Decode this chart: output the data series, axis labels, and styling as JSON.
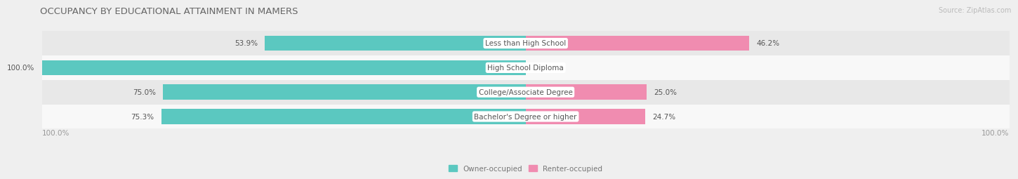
{
  "title": "OCCUPANCY BY EDUCATIONAL ATTAINMENT IN MAMERS",
  "source": "Source: ZipAtlas.com",
  "categories": [
    "Less than High School",
    "High School Diploma",
    "College/Associate Degree",
    "Bachelor's Degree or higher"
  ],
  "owner_values": [
    53.9,
    100.0,
    75.0,
    75.3
  ],
  "renter_values": [
    46.2,
    0.0,
    25.0,
    24.7
  ],
  "owner_color": "#5BC8C0",
  "renter_color": "#F08CB0",
  "bg_color": "#efefef",
  "title_fontsize": 9.5,
  "value_fontsize": 7.5,
  "cat_fontsize": 7.5,
  "axis_label_fontsize": 7.5,
  "source_fontsize": 7,
  "legend_fontsize": 7.5,
  "bar_height": 0.62,
  "row_bg_colors": [
    "#e8e8e8",
    "#f8f8f8",
    "#e8e8e8",
    "#f8f8f8"
  ]
}
